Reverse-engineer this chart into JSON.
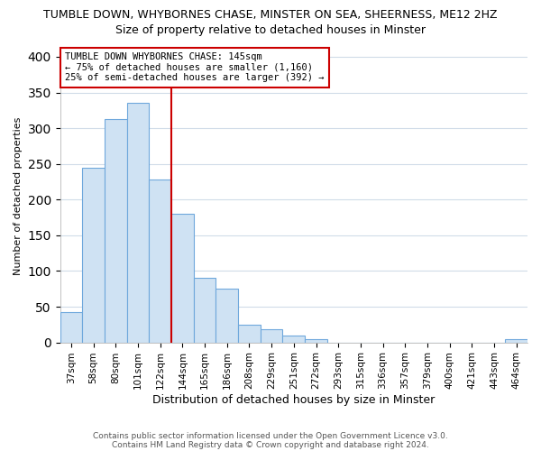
{
  "title_line1": "TUMBLE DOWN, WHYBORNES CHASE, MINSTER ON SEA, SHEERNESS, ME12 2HZ",
  "title_line2": "Size of property relative to detached houses in Minster",
  "xlabel": "Distribution of detached houses by size in Minster",
  "ylabel": "Number of detached properties",
  "categories": [
    "37sqm",
    "58sqm",
    "80sqm",
    "101sqm",
    "122sqm",
    "144sqm",
    "165sqm",
    "186sqm",
    "208sqm",
    "229sqm",
    "251sqm",
    "272sqm",
    "293sqm",
    "315sqm",
    "336sqm",
    "357sqm",
    "379sqm",
    "400sqm",
    "421sqm",
    "443sqm",
    "464sqm"
  ],
  "values": [
    42,
    245,
    313,
    335,
    228,
    180,
    90,
    75,
    25,
    18,
    10,
    5,
    0,
    0,
    0,
    0,
    0,
    0,
    0,
    0,
    5
  ],
  "bar_color": "#cfe2f3",
  "bar_edge_color": "#6fa8dc",
  "vline_x_index": 5,
  "vline_color": "#cc0000",
  "annotation_text": "TUMBLE DOWN WHYBORNES CHASE: 145sqm\n← 75% of detached houses are smaller (1,160)\n25% of semi-detached houses are larger (392) →",
  "annotation_box_facecolor": "#ffffff",
  "annotation_box_edgecolor": "#cc0000",
  "ylim": [
    0,
    410
  ],
  "yticks": [
    0,
    50,
    100,
    150,
    200,
    250,
    300,
    350,
    400
  ],
  "footnote_line1": "Contains HM Land Registry data © Crown copyright and database right 2024.",
  "footnote_line2": "Contains public sector information licensed under the Open Government Licence v3.0.",
  "background_color": "#ffffff",
  "plot_background": "#ffffff",
  "grid_color": "#d0dce8",
  "title1_fontsize": 9,
  "title2_fontsize": 9,
  "ylabel_fontsize": 8,
  "xlabel_fontsize": 9,
  "tick_fontsize": 7.5,
  "annot_fontsize": 7.5,
  "footnote_fontsize": 6.5
}
